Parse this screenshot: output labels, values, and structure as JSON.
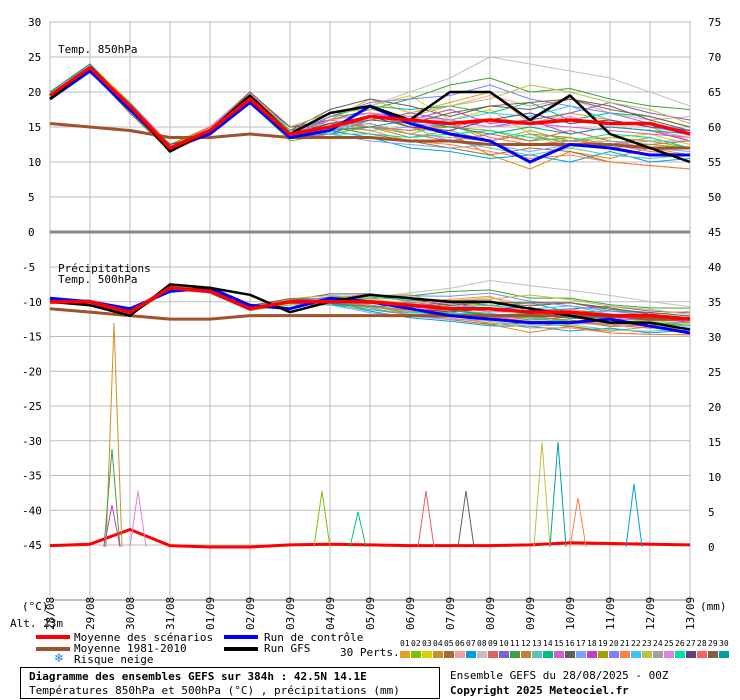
{
  "chart_data": {
    "type": "line",
    "dates": [
      "28/08",
      "29/08",
      "30/08",
      "31/08",
      "01/09",
      "02/09",
      "03/09",
      "04/09",
      "05/09",
      "06/09",
      "07/09",
      "08/09",
      "09/09",
      "10/09",
      "11/09",
      "12/09",
      "13/09"
    ],
    "upper_panel": {
      "title": "Temp. 850hPa",
      "left_axis": {
        "ticks": [
          30,
          25,
          20,
          15,
          10,
          5,
          0
        ],
        "unit": "°C"
      },
      "right_axis": {
        "ticks": [
          75,
          70,
          65,
          60,
          55,
          50,
          45
        ]
      },
      "series": [
        {
          "name": "Moyenne des scénarios",
          "values": [
            19.5,
            23.5,
            18,
            12,
            14.5,
            19,
            14,
            15,
            16.5,
            16,
            15.5,
            16,
            15.5,
            16,
            15.5,
            15.5,
            14
          ]
        },
        {
          "name": "Moyenne 1981-2010",
          "values": [
            15.5,
            15,
            14.5,
            13.5,
            13.5,
            14,
            13.5,
            13.5,
            13.5,
            13,
            13,
            12.5,
            12.5,
            12.5,
            12.5,
            12,
            12
          ]
        },
        {
          "name": "Run de contrôle",
          "values": [
            19,
            23,
            17.5,
            12,
            14,
            18.5,
            13.5,
            14.5,
            18,
            15.5,
            14,
            13,
            10,
            12.5,
            12,
            11,
            11
          ]
        },
        {
          "name": "Run GFS",
          "values": [
            19,
            23.5,
            18,
            11.5,
            14.5,
            19.5,
            14,
            17,
            18,
            16,
            20,
            20,
            16,
            19.5,
            14,
            12,
            10
          ]
        }
      ],
      "members": [
        [
          19.5,
          24,
          18.5,
          12.5,
          15,
          20,
          14.5,
          16,
          19,
          17,
          18.5,
          20,
          15.5,
          17,
          16,
          15,
          13
        ],
        [
          19,
          23,
          17,
          11.5,
          14,
          18.5,
          13,
          14,
          15,
          14,
          15.5,
          13,
          14.5,
          13,
          13.5,
          13,
          12
        ],
        [
          20,
          24,
          18.5,
          12,
          15,
          19.5,
          15,
          17,
          18,
          19.5,
          16,
          17.5,
          14,
          12,
          13.5,
          14,
          12.5
        ],
        [
          19.5,
          23,
          17.5,
          12.5,
          14.5,
          19,
          14,
          16.5,
          17,
          15,
          14,
          11,
          9,
          11.5,
          10.5,
          12,
          11
        ],
        [
          19,
          23.5,
          18,
          12,
          15,
          20,
          14.5,
          15,
          14,
          13,
          12,
          11,
          12,
          11.5,
          10,
          9.5,
          9
        ],
        [
          19.5,
          24,
          17.5,
          11.5,
          14,
          19.5,
          13.5,
          15.5,
          16,
          17,
          18,
          19.5,
          18,
          19,
          17,
          16,
          16.5
        ],
        [
          20,
          23,
          18,
          12.5,
          14.5,
          18.5,
          14,
          14.5,
          13.5,
          12,
          11.5,
          10.5,
          11,
          10,
          11.5,
          10,
          10.5
        ],
        [
          19,
          23.5,
          17,
          12,
          15,
          19,
          15,
          17,
          18,
          20,
          22,
          25,
          24,
          23,
          22,
          20,
          18
        ],
        [
          19.5,
          23,
          18.5,
          12,
          14,
          20,
          14,
          15,
          15.5,
          14,
          13,
          14,
          13,
          14.5,
          13,
          12.5,
          13
        ],
        [
          20,
          24,
          17.5,
          11.5,
          14.5,
          19.5,
          13.5,
          14,
          16,
          17,
          16,
          15,
          16,
          17,
          18.5,
          17,
          16
        ],
        [
          19,
          23,
          18,
          12.5,
          15,
          18.5,
          14.5,
          16,
          17.5,
          19,
          21,
          22,
          20,
          20.5,
          19,
          18,
          17.5
        ],
        [
          19.5,
          23.5,
          17,
          12,
          14,
          19,
          14,
          14.5,
          15,
          13.5,
          14.5,
          13,
          14,
          13.5,
          12.5,
          13.5,
          12
        ],
        [
          20,
          24,
          18,
          11.5,
          15,
          20,
          15,
          15.5,
          14.5,
          15,
          13,
          12,
          11,
          12,
          11,
          10.5,
          11
        ],
        [
          19.5,
          23,
          17.5,
          12,
          14.5,
          19.5,
          13.5,
          16.5,
          18,
          17.5,
          18,
          17,
          18.5,
          16,
          17,
          16.5,
          15
        ],
        [
          19,
          23.5,
          18.5,
          12.5,
          14,
          18.5,
          14,
          15,
          16.5,
          15.5,
          15,
          16,
          15.5,
          15,
          14.5,
          14,
          13.5
        ],
        [
          20,
          23,
          17,
          12,
          15,
          19,
          14.5,
          17.5,
          19,
          18,
          16.5,
          18,
          17.5,
          19,
          18,
          16,
          14.5
        ],
        [
          19.5,
          24,
          18,
          11.5,
          14.5,
          20,
          14,
          14,
          13,
          12.5,
          12,
          12.5,
          11.5,
          12.5,
          13,
          12,
          11.5
        ],
        [
          19,
          23,
          17.5,
          12,
          14,
          19.5,
          15,
          16,
          17,
          16,
          17.5,
          15.5,
          16,
          14,
          15,
          14.5,
          13
        ],
        [
          19.5,
          23.5,
          18,
          12.5,
          15,
          18.5,
          13.5,
          15.5,
          15,
          14.5,
          15,
          14.5,
          13,
          13.5,
          12,
          12.5,
          12
        ],
        [
          20,
          24,
          17,
          12,
          14.5,
          19,
          14,
          16.5,
          18.5,
          19,
          19.5,
          21,
          19,
          18,
          17,
          15.5,
          14.5
        ],
        [
          19,
          23,
          18.5,
          11.5,
          14,
          20,
          14.5,
          15,
          14.5,
          13,
          12.5,
          11.5,
          10.5,
          11,
          10,
          9.5,
          9
        ],
        [
          19.5,
          23.5,
          17.5,
          12,
          15,
          19.5,
          14,
          14.5,
          16,
          15.5,
          16,
          17,
          16.5,
          18,
          16,
          15,
          14
        ],
        [
          20,
          23,
          18,
          12.5,
          14.5,
          18.5,
          15,
          17,
          17.5,
          16.5,
          18,
          19,
          21,
          20,
          18.5,
          17.5,
          15.5
        ],
        [
          19.5,
          24,
          17,
          12,
          14,
          19,
          13.5,
          15,
          15.5,
          14,
          13.5,
          13,
          14,
          12.5,
          12.5,
          13,
          13
        ],
        [
          19,
          23.5,
          18,
          11.5,
          15,
          20,
          14,
          16,
          17,
          16.5,
          16,
          15,
          15.5,
          16.5,
          15,
          14.5,
          13.5
        ],
        [
          19.5,
          23,
          18.5,
          12,
          14.5,
          19.5,
          14.5,
          14,
          14,
          13.5,
          14,
          14.5,
          13.5,
          13,
          14,
          13.5,
          12
        ],
        [
          20,
          24,
          17.5,
          12.5,
          14,
          18.5,
          14,
          15.5,
          16.5,
          15,
          14.5,
          16,
          17,
          15.5,
          16,
          15,
          14.5
        ],
        [
          19,
          23,
          18,
          12,
          15,
          19,
          13.5,
          16,
          15,
          14.5,
          15.5,
          13.5,
          12.5,
          13,
          12.5,
          11.5,
          11
        ],
        [
          19.5,
          23.5,
          17,
          11.5,
          14.5,
          20,
          15,
          15,
          16,
          15.5,
          17,
          18,
          18.5,
          19,
          17.5,
          16.5,
          15
        ],
        [
          20,
          24,
          18,
          12,
          14,
          19.5,
          14,
          14.5,
          15,
          16,
          15,
          14,
          15,
          14,
          15,
          14.5,
          14
        ]
      ]
    },
    "lower_panel": {
      "title": "Précipitations",
      "subtitle": "Temp. 500hPa",
      "left_axis": {
        "ticks": [
          -5,
          -10,
          -15,
          -20,
          -25,
          -30,
          -35,
          -40,
          -45
        ],
        "unit": "°C"
      },
      "right_axis": {
        "ticks": [
          40,
          35,
          30,
          25,
          20,
          15,
          10,
          5,
          0
        ],
        "unit": "mm"
      },
      "series": [
        {
          "name": "Moyenne des scénarios",
          "values": [
            -10,
            -10,
            -11.5,
            -8,
            -8.5,
            -11,
            -10,
            -10,
            -10,
            -10.5,
            -11,
            -11,
            -11.5,
            -11.5,
            -12,
            -12,
            -12.5
          ]
        },
        {
          "name": "Moyenne 1981-2010",
          "values": [
            -11,
            -11.5,
            -12,
            -12.5,
            -12.5,
            -12,
            -12,
            -12,
            -12,
            -12,
            -12,
            -12,
            -12,
            -12,
            -12,
            -12.5,
            -12.5
          ]
        },
        {
          "name": "Run de contrôle",
          "values": [
            -9.5,
            -10,
            -11,
            -8.5,
            -8,
            -10.5,
            -11,
            -9.5,
            -10,
            -11,
            -12,
            -12.5,
            -13,
            -13,
            -12.5,
            -13.5,
            -14.5
          ]
        },
        {
          "name": "Run GFS",
          "values": [
            -10,
            -10.5,
            -12,
            -7.5,
            -8,
            -9,
            -11.5,
            -10,
            -9,
            -9.5,
            -10,
            -10,
            -11,
            -12,
            -13,
            -13,
            -14
          ]
        }
      ],
      "precip_mean": [
        0.2,
        0.4,
        2.5,
        0.2,
        0,
        0,
        0.3,
        0.4,
        0.3,
        0.2,
        0.2,
        0.2,
        0.3,
        0.6,
        0.5,
        0.4,
        0.3
      ],
      "precip_peaks": [
        {
          "x": 1.6,
          "value": 32,
          "series": "member"
        },
        {
          "x": 1.55,
          "value": 14,
          "series": "member"
        },
        {
          "x": 1.55,
          "value": 6,
          "series": "member"
        },
        {
          "x": 2.2,
          "value": 8,
          "series": "member"
        },
        {
          "x": 6.8,
          "value": 8,
          "series": "member"
        },
        {
          "x": 9.4,
          "value": 8,
          "series": "member"
        },
        {
          "x": 10.4,
          "value": 8,
          "series": "member"
        },
        {
          "x": 12.3,
          "value": 15,
          "series": "member"
        },
        {
          "x": 12.7,
          "value": 15,
          "series": "member"
        },
        {
          "x": 14.6,
          "value": 9,
          "series": "member"
        },
        {
          "x": 7.7,
          "value": 5,
          "series": "member"
        },
        {
          "x": 13.2,
          "value": 7,
          "series": "member"
        }
      ]
    }
  },
  "labels": {
    "unit_left": "(°C)",
    "unit_right": "(mm)",
    "altitude": "Alt. 23m",
    "legend_mean": "Moyenne des scénarios",
    "legend_climo": "Moyenne 1981-2010",
    "legend_snow": "Risque neige",
    "legend_control": "Run de contrôle",
    "legend_gfs": "Run GFS",
    "perts_label": "30 Perts.",
    "pert_numbers": [
      "01",
      "02",
      "03",
      "04",
      "05",
      "06",
      "07",
      "08",
      "09",
      "10",
      "11",
      "12",
      "13",
      "14",
      "15",
      "16",
      "17",
      "18",
      "19",
      "20",
      "21",
      "22",
      "23",
      "24",
      "25",
      "26",
      "27",
      "28",
      "29",
      "30"
    ],
    "pert_colors": [
      "#e8a020",
      "#80c000",
      "#d8d000",
      "#d09020",
      "#a07030",
      "#f0a0a0",
      "#00a0e0",
      "#c0c0c0",
      "#e06060",
      "#8060d0",
      "#40a040",
      "#c08040",
      "#60c0c0",
      "#00c080",
      "#d060d0",
      "#606060",
      "#80a0ff",
      "#c040c0",
      "#a0a000",
      "#8080ff",
      "#ff8040",
      "#40c0ff",
      "#c0c040",
      "#a0a0a0",
      "#e080e0",
      "#00e0a0",
      "#604080",
      "#ff6060",
      "#806040",
      "#00a0a0"
    ],
    "footer_line1": "Diagramme des ensembles GEFS sur 384h : 42.5N 14.1E",
    "footer_line2": "Températures 850hPa et 500hPa (°C) , précipitations (mm)",
    "run_info": "Ensemble GEFS du 28/08/2025 - 00Z",
    "copyright": "Copyright 2025 Meteociel.fr"
  },
  "colors": {
    "mean": "#ff0000",
    "climo": "#a0522d",
    "control": "#0000ff",
    "gfs": "#000000",
    "grid": "#bbbbbb",
    "snow": "#2080e0"
  }
}
